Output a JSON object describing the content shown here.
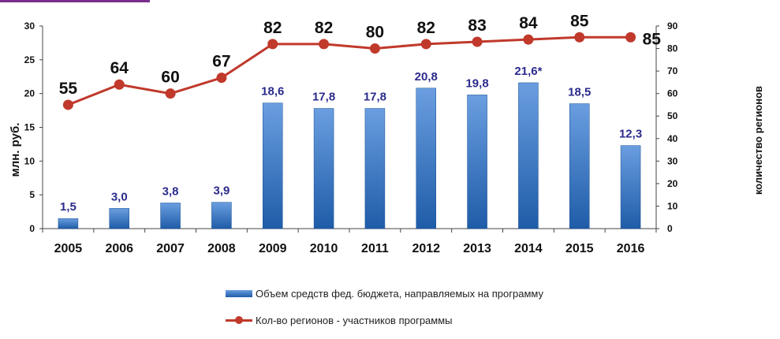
{
  "chart_data": {
    "type": "bar+line",
    "categories": [
      "2005",
      "2006",
      "2007",
      "2008",
      "2009",
      "2010",
      "2011",
      "2012",
      "2013",
      "2014",
      "2015",
      "2016"
    ],
    "series": [
      {
        "name": "Объем средств фед. бюджета, направляемых на программу",
        "type": "bar",
        "axis": "left",
        "values": [
          1.5,
          3.0,
          3.8,
          3.9,
          18.6,
          17.8,
          17.8,
          20.8,
          19.8,
          21.6,
          18.5,
          12.3
        ],
        "labels": [
          "1,5",
          "3,0",
          "3,8",
          "3,9",
          "18,6",
          "17,8",
          "17,8",
          "20,8",
          "19,8",
          "21,6*",
          "18,5",
          "12,3"
        ],
        "color": "#2e6fc0"
      },
      {
        "name": "Кол-во регионов - участников программы",
        "type": "line",
        "axis": "right",
        "values": [
          55,
          64,
          60,
          67,
          82,
          82,
          80,
          82,
          83,
          84,
          85,
          85
        ],
        "labels": [
          "55",
          "64",
          "60",
          "67",
          "82",
          "82",
          "80",
          "82",
          "83",
          "84",
          "85",
          "85"
        ],
        "color": "#c0392b"
      }
    ],
    "ylabel_left": "млн. руб.",
    "ylabel_right": "количество регионов",
    "ylim_left": [
      0,
      30
    ],
    "yticks_left": [
      "0",
      "5",
      "10",
      "15",
      "20",
      "25",
      "30"
    ],
    "ylim_right": [
      0,
      90
    ],
    "yticks_right": [
      "0",
      "10",
      "20",
      "30",
      "40",
      "50",
      "60",
      "70",
      "80",
      "90"
    ],
    "grid": false,
    "legend_position": "bottom"
  },
  "legend": {
    "bar_label": "Объем средств фед. бюджета, направляемых на программу",
    "line_label": "Кол-во регионов - участников программы"
  },
  "colors": {
    "bar_top": "#6a9ee0",
    "bar_bottom": "#1f5ca8",
    "line": "#c0392b",
    "bar_label": "#2b2b8c",
    "accent": "#7b2d8e"
  }
}
